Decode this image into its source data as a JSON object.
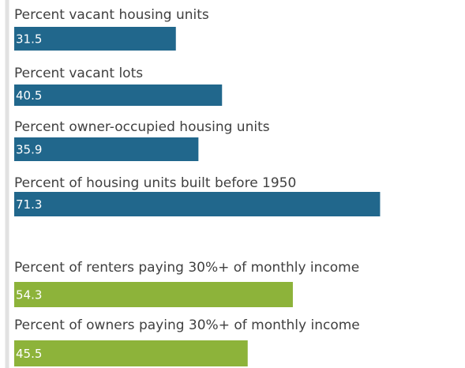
{
  "chart_data": {
    "type": "bar",
    "categories": [
      "Percent vacant housing units",
      "Percent vacant lots",
      "Percent owner-occupied housing units",
      "Percent of housing units built before 1950",
      "Percent of renters paying 30%+ of monthly income",
      "Percent of owners paying 30%+ of monthly income"
    ],
    "values": [
      31.5,
      40.5,
      35.9,
      71.3,
      54.3,
      45.5
    ],
    "colors": [
      "#21678c",
      "#21678c",
      "#21678c",
      "#21678c",
      "#8db33a",
      "#8db33a"
    ]
  }
}
